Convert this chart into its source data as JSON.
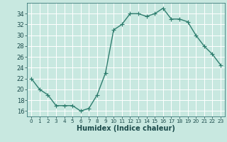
{
  "x": [
    0,
    1,
    2,
    3,
    4,
    5,
    6,
    7,
    8,
    9,
    10,
    11,
    12,
    13,
    14,
    15,
    16,
    17,
    18,
    19,
    20,
    21,
    22,
    23
  ],
  "y": [
    22,
    20,
    19,
    17,
    17,
    17,
    16,
    16.5,
    19,
    23,
    31,
    32,
    34,
    34,
    33.5,
    34,
    35,
    33,
    33,
    32.5,
    30,
    28,
    26.5,
    24.5
  ],
  "line_color": "#2e7d6e",
  "marker": "+",
  "marker_size": 4,
  "bg_color": "#c8e8e0",
  "grid_color": "#ffffff",
  "xlabel": "Humidex (Indice chaleur)",
  "xlim": [
    -0.5,
    23.5
  ],
  "ylim": [
    15,
    36
  ],
  "yticks": [
    16,
    18,
    20,
    22,
    24,
    26,
    28,
    30,
    32,
    34
  ],
  "xticks": [
    0,
    1,
    2,
    3,
    4,
    5,
    6,
    7,
    8,
    9,
    10,
    11,
    12,
    13,
    14,
    15,
    16,
    17,
    18,
    19,
    20,
    21,
    22,
    23
  ],
  "tick_label_fontsize": 6,
  "xlabel_fontsize": 7,
  "linewidth": 1.0,
  "markeredgewidth": 0.8
}
